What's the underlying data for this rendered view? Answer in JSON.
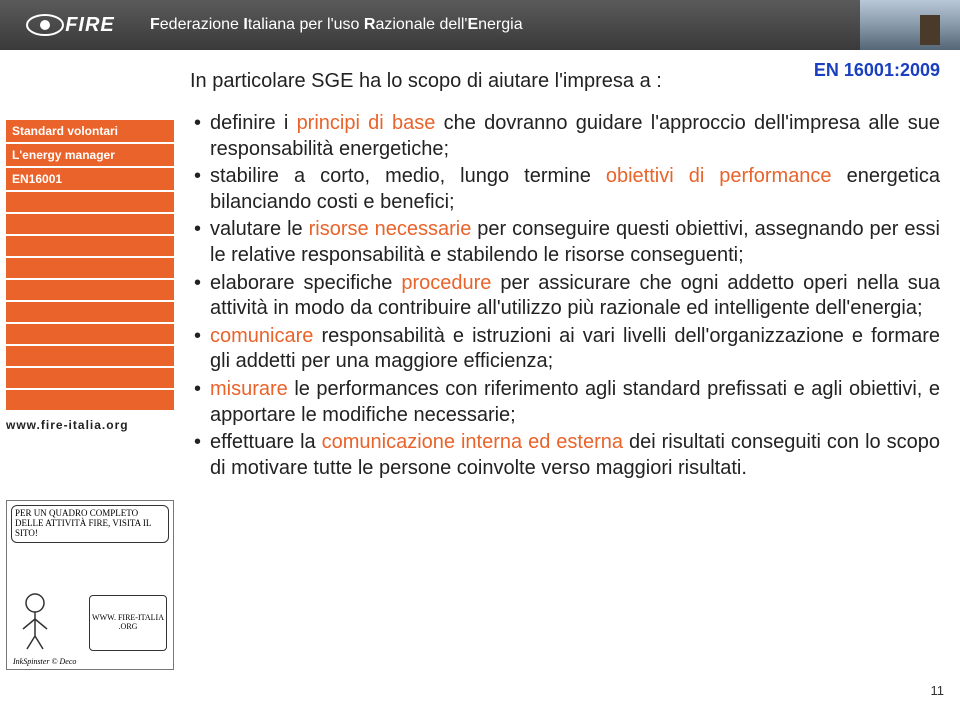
{
  "banner": {
    "logo_text": "FIRE",
    "tagline_parts": [
      "F",
      "ederazione ",
      "I",
      "taliana per l'uso ",
      "R",
      "azionale dell'",
      "E",
      "nergia"
    ]
  },
  "header": {
    "standard_label": "EN 16001:2009"
  },
  "sidebar": {
    "items": [
      "Standard volontari",
      "L'energy manager",
      "EN16001"
    ],
    "empty_rows": 10,
    "url": "www.fire-italia.org"
  },
  "cartoon": {
    "bubble": "PER UN QUADRO COMPLETO DELLE ATTIVITÀ FIRE, VISITA IL SITO!",
    "laptop": "WWW. FIRE-ITALIA .ORG",
    "signature": "InkSpinster © Deco"
  },
  "content": {
    "intro": "In particolare SGE ha lo scopo di aiutare l'impresa a :",
    "bullets": [
      {
        "pre": "definire i ",
        "hl": "principi di base",
        "post": " che dovranno guidare l'approccio dell'impresa alle sue responsabilità energetiche;"
      },
      {
        "pre": "stabilire a corto, medio, lungo termine ",
        "hl": "obiettivi di performance",
        "post": " energetica bilanciando costi e benefici;"
      },
      {
        "pre": "valutare le ",
        "hl": "risorse necessarie",
        "post": " per conseguire questi obiettivi, assegnando per essi le relative responsabilità e stabilendo le risorse conseguenti;"
      },
      {
        "pre": "elaborare specifiche ",
        "hl": "procedure",
        "post": " per assicurare che ogni addetto operi nella sua attività in modo da contribuire all'utilizzo più razionale ed intelligente dell'energia;"
      },
      {
        "pre": "",
        "hl": "comunicare",
        "post": " responsabilità e istruzioni ai vari livelli dell'organizzazione e formare gli addetti per una maggiore efficienza;"
      },
      {
        "pre": "",
        "hl": "misurare",
        "post": " le performances con riferimento agli standard prefissati e agli obiettivi, e apportare le modifiche necessarie;"
      },
      {
        "pre": "effettuare la ",
        "hl": "comunicazione interna ed esterna",
        "post": " dei risultati conseguiti con lo scopo di motivare tutte le persone coinvolte verso maggiori risultati."
      }
    ]
  },
  "page_number": "11",
  "colors": {
    "accent": "#e9632a",
    "link": "#1a3fbf"
  }
}
